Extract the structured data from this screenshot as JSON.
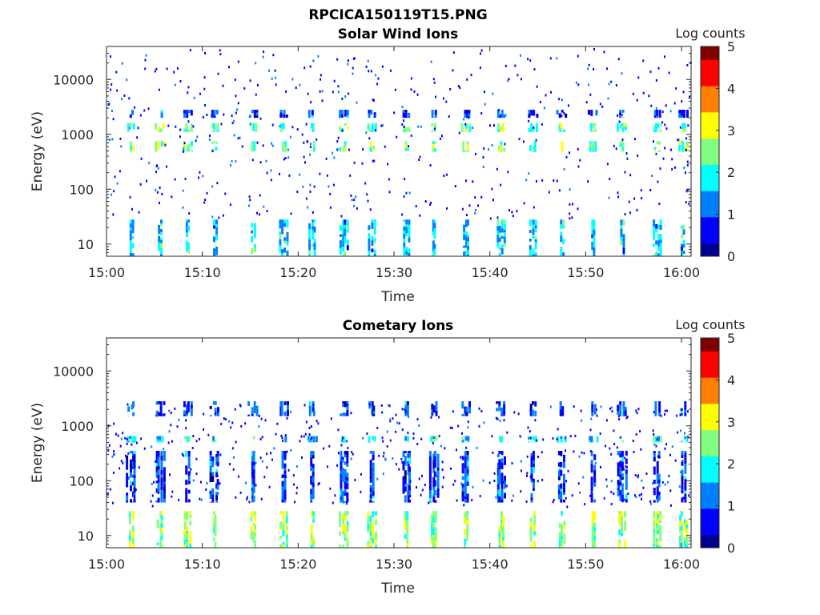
{
  "figure_title": "RPCICA150119T15.PNG",
  "colormap": [
    "#00008f",
    "#0000ff",
    "#0080ff",
    "#00ffff",
    "#80ff80",
    "#ffff00",
    "#ff8000",
    "#ff0000",
    "#800000"
  ],
  "chart_data": [
    {
      "type": "heatmap",
      "title": "Solar Wind Ions",
      "xlabel": "Time",
      "ylabel": "Energy (eV)",
      "x_tick_labels": [
        "15:00",
        "15:10",
        "15:20",
        "15:30",
        "15:40",
        "15:50",
        "16:00"
      ],
      "y_tick_labels": [
        "10",
        "100",
        "1000",
        "10000"
      ],
      "y_scale": "log",
      "xlim": [
        "15:00",
        "16:01"
      ],
      "ylim": [
        6,
        40000
      ],
      "colorbar": {
        "label": "Log counts",
        "range": [
          0,
          5
        ],
        "ticks": [
          "0",
          "1",
          "2",
          "3",
          "4",
          "5"
        ]
      },
      "sweeps_min": [
        2.6,
        5.6,
        8.5,
        11.3,
        15.3,
        18.5,
        21.5,
        24.8,
        27.7,
        31.3,
        34.2,
        37.5,
        41.2,
        44.5,
        47.5,
        50.8,
        53.8,
        57.5,
        60.2
      ],
      "bands": [
        {
          "energy_eV": [
            6,
            28
          ],
          "log_counts": 1.6
        },
        {
          "energy_eV": [
            480,
            750
          ],
          "log_counts": 2.4
        },
        {
          "energy_eV": [
            1100,
            1600
          ],
          "log_counts": 2.3
        },
        {
          "energy_eV": [
            2000,
            2800
          ],
          "log_counts": 0.9
        }
      ]
    },
    {
      "type": "heatmap",
      "title": "Cometary Ions",
      "xlabel": "Time",
      "ylabel": "Energy (eV)",
      "x_tick_labels": [
        "15:00",
        "15:10",
        "15:20",
        "15:30",
        "15:40",
        "15:50",
        "16:00"
      ],
      "y_tick_labels": [
        "10",
        "100",
        "1000",
        "10000"
      ],
      "y_scale": "log",
      "xlim": [
        "15:00",
        "16:01"
      ],
      "ylim": [
        6,
        40000
      ],
      "colorbar": {
        "label": "Log counts",
        "range": [
          0,
          5
        ],
        "ticks": [
          "0",
          "1",
          "2",
          "3",
          "4",
          "5"
        ]
      },
      "sweeps_min": [
        2.6,
        5.6,
        8.5,
        11.3,
        15.3,
        18.5,
        21.5,
        24.8,
        27.7,
        31.3,
        34.2,
        37.5,
        41.2,
        44.5,
        47.5,
        50.8,
        53.8,
        57.5,
        60.2
      ],
      "bands": [
        {
          "energy_eV": [
            6,
            28
          ],
          "log_counts": 2.6
        },
        {
          "energy_eV": [
            40,
            350
          ],
          "log_counts": 0.9
        },
        {
          "energy_eV": [
            500,
            650
          ],
          "log_counts": 1.8
        },
        {
          "energy_eV": [
            1500,
            2800
          ],
          "log_counts": 0.9
        }
      ]
    }
  ]
}
